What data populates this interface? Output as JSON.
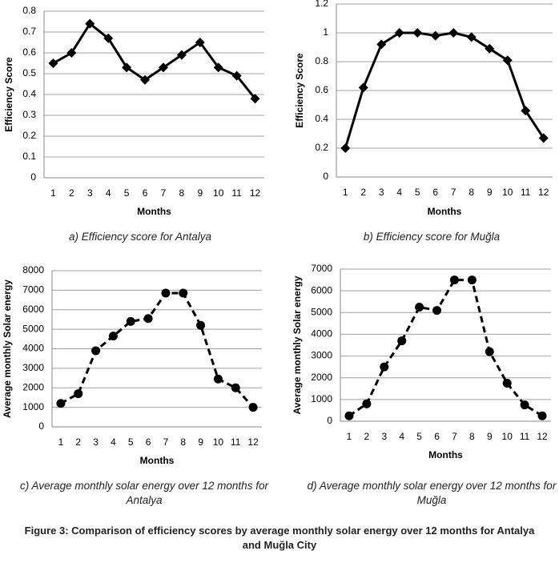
{
  "figure_caption": "Figure 3: Comparison of efficiency scores by average monthly solar energy over 12 months for Antalya and Muğla City",
  "chart_data": [
    {
      "type": "line",
      "caption": "a) Efficiency score for Antalya",
      "x_label": "Months",
      "y_label": "Efficiency Score",
      "categories": [
        "1",
        "2",
        "3",
        "4",
        "5",
        "6",
        "7",
        "8",
        "9",
        "10",
        "11",
        "12"
      ],
      "values": [
        0.55,
        0.6,
        0.74,
        0.67,
        0.53,
        0.47,
        0.53,
        0.59,
        0.65,
        0.53,
        0.49,
        0.38
      ],
      "ylim": [
        0,
        0.8
      ],
      "yticks": [
        0,
        0.1,
        0.2,
        0.3,
        0.4,
        0.5,
        0.6,
        0.7,
        0.8
      ],
      "grid": true,
      "color": "#000000",
      "marker": "diamond",
      "line_style": "solid"
    },
    {
      "type": "line",
      "caption": "b) Efficiency score for Muğla",
      "x_label": "Months",
      "y_label": "Efficiency  Score",
      "categories": [
        "1",
        "2",
        "3",
        "4",
        "5",
        "6",
        "7",
        "8",
        "9",
        "10",
        "11",
        "12"
      ],
      "values": [
        0.2,
        0.62,
        0.92,
        1.0,
        1.0,
        0.98,
        1.0,
        0.97,
        0.89,
        0.81,
        0.46,
        0.27
      ],
      "ylim": [
        0,
        1.2
      ],
      "yticks": [
        0,
        0.2,
        0.4,
        0.6,
        0.8,
        1,
        1.2
      ],
      "grid": true,
      "color": "#000000",
      "marker": "diamond",
      "line_style": "solid"
    },
    {
      "type": "line",
      "caption": "c) Average monthly solar energy over 12 months for Antalya",
      "x_label": "Months",
      "y_label": "Average monthly Solar energy",
      "categories": [
        "1",
        "2",
        "3",
        "4",
        "5",
        "6",
        "7",
        "8",
        "9",
        "10",
        "11",
        "12"
      ],
      "values": [
        1200,
        1700,
        3900,
        4650,
        5400,
        5550,
        6850,
        6850,
        5200,
        2450,
        2000,
        1000
      ],
      "ylim": [
        0,
        8000
      ],
      "yticks": [
        0,
        1000,
        2000,
        3000,
        4000,
        5000,
        6000,
        7000,
        8000
      ],
      "grid": true,
      "color": "#000000",
      "marker": "circle",
      "line_style": "dashed"
    },
    {
      "type": "line",
      "caption": "d) Average monthly solar energy over 12 months for Muğla",
      "x_label": "Months",
      "y_label": "Average monthly Solar energy",
      "categories": [
        "1",
        "2",
        "3",
        "4",
        "5",
        "6",
        "7",
        "8",
        "9",
        "10",
        "11",
        "12"
      ],
      "values": [
        250,
        800,
        2500,
        3700,
        5250,
        5100,
        6500,
        6500,
        3200,
        1750,
        750,
        250
      ],
      "ylim": [
        0,
        7000
      ],
      "yticks": [
        0,
        1000,
        2000,
        3000,
        4000,
        5000,
        6000,
        7000
      ],
      "grid": true,
      "color": "#000000",
      "marker": "circle",
      "line_style": "dashed"
    }
  ]
}
